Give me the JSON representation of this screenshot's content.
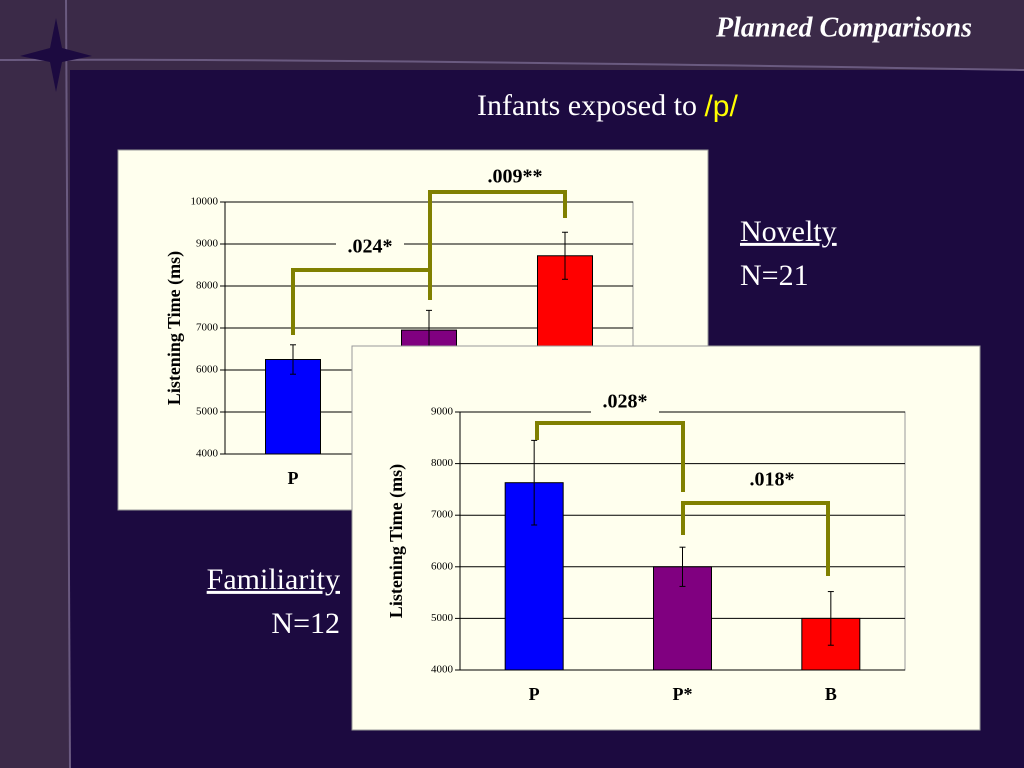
{
  "header": {
    "title": "Planned Comparisons"
  },
  "subtitle": "Infants exposed to",
  "subtitle_highlight": "/p/",
  "notes": {
    "novelty": "Novelty",
    "novelty_n": "N=21",
    "familiarity": "Familiarity",
    "familiarity_n": "N=12"
  },
  "chart_data": [
    {
      "type": "bar",
      "ylabel": "Listening Time (ms)",
      "categories": [
        "P",
        null,
        null
      ],
      "values": [
        6250,
        6950,
        8720
      ],
      "errors": [
        350,
        470,
        560
      ],
      "colors": [
        "#0000ff",
        "#800080",
        "#ff0000"
      ],
      "ylim": [
        4000,
        10000
      ],
      "yticks": [
        4000,
        5000,
        6000,
        7000,
        8000,
        9000,
        10000
      ],
      "grid": true,
      "annotations": [
        ".024*",
        ".009**"
      ]
    },
    {
      "type": "bar",
      "ylabel": "Listening Time (ms)",
      "categories": [
        "P",
        "P*",
        "B"
      ],
      "values": [
        7630,
        6000,
        5000
      ],
      "errors": [
        820,
        380,
        520
      ],
      "colors": [
        "#0000ff",
        "#800080",
        "#ff0000"
      ],
      "ylim": [
        4000,
        9000
      ],
      "yticks": [
        4000,
        5000,
        6000,
        7000,
        8000,
        9000
      ],
      "grid": true,
      "annotations": [
        ".028*",
        ".018*"
      ]
    }
  ]
}
